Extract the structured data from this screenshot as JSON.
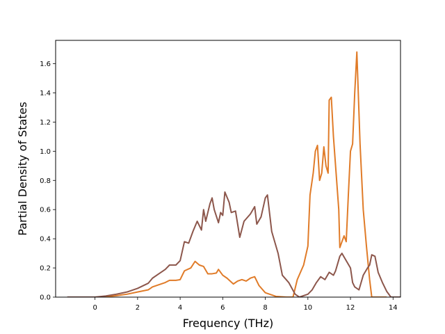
{
  "chart_data": {
    "type": "line",
    "xlabel": "Frequency (THz)",
    "ylabel": "Partial Density of States",
    "xlim": [
      -1.85,
      14.35
    ],
    "ylim": [
      0.0,
      1.76
    ],
    "xticks": [
      0,
      2,
      4,
      6,
      8,
      10,
      12,
      14
    ],
    "yticks": [
      0.0,
      0.2,
      0.4,
      0.6,
      0.8,
      1.0,
      1.2,
      1.4,
      1.6
    ],
    "grid": false,
    "series": [
      {
        "color": "#e07b28",
        "points": [
          [
            -1.3,
            0.0
          ],
          [
            -0.5,
            0.0
          ],
          [
            0.0,
            0.0
          ],
          [
            0.5,
            0.003
          ],
          [
            1.0,
            0.01
          ],
          [
            1.5,
            0.02
          ],
          [
            2.0,
            0.035
          ],
          [
            2.5,
            0.05
          ],
          [
            2.7,
            0.07
          ],
          [
            3.0,
            0.085
          ],
          [
            3.3,
            0.1
          ],
          [
            3.5,
            0.115
          ],
          [
            3.8,
            0.115
          ],
          [
            4.0,
            0.12
          ],
          [
            4.2,
            0.18
          ],
          [
            4.5,
            0.2
          ],
          [
            4.7,
            0.245
          ],
          [
            4.9,
            0.22
          ],
          [
            5.1,
            0.21
          ],
          [
            5.3,
            0.16
          ],
          [
            5.5,
            0.16
          ],
          [
            5.7,
            0.165
          ],
          [
            5.8,
            0.19
          ],
          [
            6.0,
            0.15
          ],
          [
            6.2,
            0.13
          ],
          [
            6.5,
            0.09
          ],
          [
            6.7,
            0.11
          ],
          [
            6.9,
            0.12
          ],
          [
            7.1,
            0.11
          ],
          [
            7.3,
            0.13
          ],
          [
            7.5,
            0.14
          ],
          [
            7.7,
            0.08
          ],
          [
            8.0,
            0.03
          ],
          [
            8.5,
            0.005
          ],
          [
            9.0,
            0.0
          ],
          [
            9.3,
            0.0
          ],
          [
            9.5,
            0.12
          ],
          [
            9.8,
            0.22
          ],
          [
            10.0,
            0.35
          ],
          [
            10.1,
            0.7
          ],
          [
            10.25,
            0.85
          ],
          [
            10.35,
            1.0
          ],
          [
            10.45,
            1.04
          ],
          [
            10.55,
            0.8
          ],
          [
            10.65,
            0.85
          ],
          [
            10.75,
            1.03
          ],
          [
            10.85,
            0.9
          ],
          [
            10.95,
            0.85
          ],
          [
            11.0,
            1.35
          ],
          [
            11.1,
            1.37
          ],
          [
            11.2,
            1.1
          ],
          [
            11.3,
            0.9
          ],
          [
            11.45,
            0.6
          ],
          [
            11.5,
            0.34
          ],
          [
            11.6,
            0.38
          ],
          [
            11.7,
            0.42
          ],
          [
            11.8,
            0.38
          ],
          [
            11.9,
            0.7
          ],
          [
            12.0,
            1.0
          ],
          [
            12.1,
            1.05
          ],
          [
            12.2,
            1.4
          ],
          [
            12.3,
            1.68
          ],
          [
            12.45,
            1.05
          ],
          [
            12.6,
            0.6
          ],
          [
            12.75,
            0.35
          ],
          [
            12.9,
            0.12
          ],
          [
            13.0,
            0.0
          ],
          [
            13.5,
            0.0
          ],
          [
            13.7,
            0.0
          ]
        ]
      },
      {
        "color": "#8c564b",
        "points": [
          [
            -1.3,
            0.0
          ],
          [
            -0.5,
            0.0
          ],
          [
            0.0,
            0.0
          ],
          [
            0.5,
            0.008
          ],
          [
            1.0,
            0.02
          ],
          [
            1.5,
            0.035
          ],
          [
            2.0,
            0.06
          ],
          [
            2.5,
            0.095
          ],
          [
            2.7,
            0.13
          ],
          [
            3.0,
            0.16
          ],
          [
            3.3,
            0.19
          ],
          [
            3.5,
            0.22
          ],
          [
            3.8,
            0.22
          ],
          [
            4.0,
            0.25
          ],
          [
            4.2,
            0.38
          ],
          [
            4.4,
            0.37
          ],
          [
            4.6,
            0.45
          ],
          [
            4.8,
            0.52
          ],
          [
            5.0,
            0.46
          ],
          [
            5.1,
            0.6
          ],
          [
            5.2,
            0.52
          ],
          [
            5.4,
            0.64
          ],
          [
            5.5,
            0.68
          ],
          [
            5.6,
            0.6
          ],
          [
            5.8,
            0.51
          ],
          [
            5.9,
            0.58
          ],
          [
            6.0,
            0.56
          ],
          [
            6.1,
            0.72
          ],
          [
            6.3,
            0.65
          ],
          [
            6.4,
            0.58
          ],
          [
            6.6,
            0.59
          ],
          [
            6.8,
            0.41
          ],
          [
            7.0,
            0.52
          ],
          [
            7.3,
            0.57
          ],
          [
            7.5,
            0.62
          ],
          [
            7.6,
            0.5
          ],
          [
            7.8,
            0.55
          ],
          [
            8.0,
            0.68
          ],
          [
            8.1,
            0.7
          ],
          [
            8.3,
            0.45
          ],
          [
            8.6,
            0.3
          ],
          [
            8.8,
            0.15
          ],
          [
            9.1,
            0.1
          ],
          [
            9.4,
            0.02
          ],
          [
            9.6,
            0.0
          ],
          [
            10.0,
            0.02
          ],
          [
            10.2,
            0.05
          ],
          [
            10.4,
            0.1
          ],
          [
            10.6,
            0.14
          ],
          [
            10.8,
            0.12
          ],
          [
            11.0,
            0.17
          ],
          [
            11.2,
            0.15
          ],
          [
            11.3,
            0.18
          ],
          [
            11.5,
            0.28
          ],
          [
            11.6,
            0.3
          ],
          [
            11.8,
            0.25
          ],
          [
            12.0,
            0.2
          ],
          [
            12.1,
            0.1
          ],
          [
            12.2,
            0.07
          ],
          [
            12.4,
            0.05
          ],
          [
            12.6,
            0.15
          ],
          [
            12.8,
            0.2
          ],
          [
            12.9,
            0.22
          ],
          [
            13.0,
            0.29
          ],
          [
            13.15,
            0.28
          ],
          [
            13.3,
            0.17
          ],
          [
            13.5,
            0.1
          ],
          [
            13.7,
            0.04
          ],
          [
            13.9,
            0.0
          ],
          [
            14.3,
            0.0
          ],
          [
            15.1,
            0.0
          ]
        ]
      }
    ]
  }
}
